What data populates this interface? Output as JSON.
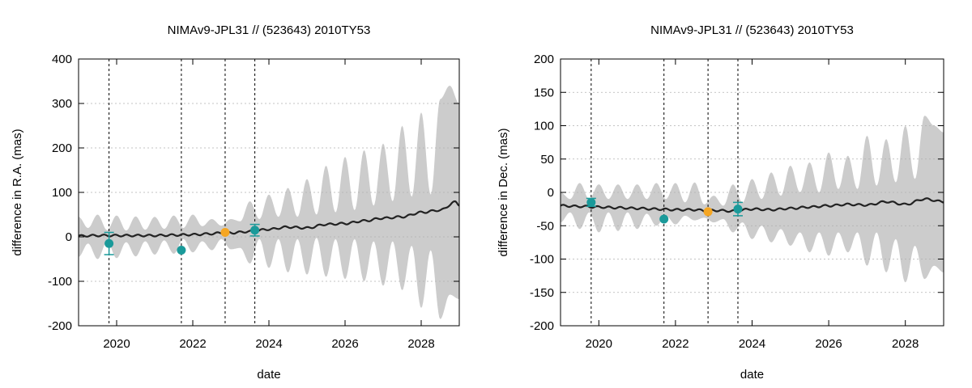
{
  "chart_data": [
    {
      "type": "line",
      "title": "NIMAv9-JPL31 // (523643) 2010TY53",
      "xlabel": "date",
      "ylabel": "difference in R.A. (mas)",
      "xlim": [
        2019.0,
        2029.0
      ],
      "ylim": [
        -200,
        400
      ],
      "x_ticks": [
        2020,
        2022,
        2024,
        2026,
        2028
      ],
      "x_tick_labels": [
        "2020",
        "2022",
        "2024",
        "2026",
        "2028"
      ],
      "y_ticks": [
        -200,
        -100,
        0,
        100,
        200,
        300,
        400
      ],
      "y_tick_labels": [
        "-200",
        "-100",
        "0",
        "100",
        "200",
        "300",
        "400"
      ],
      "grid": true,
      "vertical_markers": [
        2019.8,
        2021.7,
        2022.85,
        2023.63
      ],
      "series": [
        {
          "name": "difference",
          "kind": "curve",
          "color": "#222222",
          "x": [
            2019.0,
            2019.5,
            2020.0,
            2020.5,
            2021.0,
            2021.5,
            2022.0,
            2022.5,
            2022.85,
            2023.0,
            2023.5,
            2024.0,
            2024.5,
            2025.0,
            2025.5,
            2026.0,
            2026.5,
            2027.0,
            2027.5,
            2028.0,
            2028.5,
            2028.9,
            2029.0
          ],
          "y": [
            2,
            3,
            3,
            3,
            3,
            4,
            5,
            7,
            10,
            9,
            12,
            17,
            22,
            20,
            28,
            30,
            36,
            42,
            45,
            55,
            60,
            78,
            72
          ]
        },
        {
          "name": "uncertainty envelope",
          "kind": "band",
          "color": "#cccccc",
          "x": [
            2019.0,
            2019.25,
            2019.5,
            2019.75,
            2020.0,
            2020.25,
            2020.5,
            2020.75,
            2021.0,
            2021.25,
            2021.5,
            2021.75,
            2022.0,
            2022.25,
            2022.5,
            2022.75,
            2023.0,
            2023.25,
            2023.5,
            2023.75,
            2024.0,
            2024.25,
            2024.5,
            2024.75,
            2025.0,
            2025.25,
            2025.5,
            2025.75,
            2026.0,
            2026.25,
            2026.5,
            2026.75,
            2027.0,
            2027.25,
            2027.5,
            2027.75,
            2028.0,
            2028.25,
            2028.5,
            2028.75,
            2029.0
          ],
          "upper": [
            45,
            20,
            50,
            15,
            48,
            14,
            46,
            16,
            45,
            18,
            48,
            20,
            50,
            24,
            40,
            25,
            40,
            35,
            80,
            40,
            95,
            45,
            110,
            45,
            130,
            50,
            160,
            55,
            180,
            60,
            195,
            70,
            210,
            80,
            250,
            90,
            280,
            95,
            310,
            340,
            300
          ],
          "lower": [
            -45,
            -15,
            -50,
            -10,
            -48,
            -12,
            -44,
            -10,
            -40,
            -8,
            -38,
            -5,
            -35,
            -10,
            -30,
            -5,
            -28,
            -25,
            -60,
            -5,
            -70,
            -5,
            -80,
            -5,
            -85,
            -2,
            -90,
            -5,
            -95,
            -5,
            -100,
            -10,
            -110,
            -10,
            -120,
            -20,
            -160,
            -30,
            -185,
            -130,
            -140
          ]
        },
        {
          "name": "observations",
          "kind": "points",
          "color": "#1a9a9a",
          "x": [
            2019.8,
            2021.7,
            2023.63
          ],
          "y": [
            -15,
            -30,
            15
          ],
          "yerr": [
            25,
            0,
            13
          ]
        },
        {
          "name": "reference epoch",
          "kind": "points",
          "color": "#f5a623",
          "x": [
            2022.85
          ],
          "y": [
            10
          ],
          "yerr": [
            0
          ]
        }
      ]
    },
    {
      "type": "line",
      "title": "NIMAv9-JPL31 // (523643) 2010TY53",
      "xlabel": "date",
      "ylabel": "difference in Dec. (mas)",
      "xlim": [
        2019.0,
        2029.0
      ],
      "ylim": [
        -200,
        200
      ],
      "x_ticks": [
        2020,
        2022,
        2024,
        2026,
        2028
      ],
      "x_tick_labels": [
        "2020",
        "2022",
        "2024",
        "2026",
        "2028"
      ],
      "y_ticks": [
        -200,
        -150,
        -100,
        -50,
        0,
        50,
        100,
        150,
        200
      ],
      "y_tick_labels": [
        "-200",
        "-150",
        "-100",
        "-50",
        "0",
        "50",
        "100",
        "150",
        "200"
      ],
      "grid": true,
      "vertical_markers": [
        2019.8,
        2021.7,
        2022.85,
        2023.63
      ],
      "series": [
        {
          "name": "difference",
          "kind": "curve",
          "color": "#222222",
          "x": [
            2019.0,
            2019.5,
            2020.0,
            2020.5,
            2021.0,
            2021.5,
            2022.0,
            2022.5,
            2022.85,
            2023.0,
            2023.5,
            2024.0,
            2024.5,
            2025.0,
            2025.5,
            2026.0,
            2026.5,
            2027.0,
            2027.5,
            2028.0,
            2028.5,
            2029.0
          ],
          "y": [
            -20,
            -21,
            -22,
            -23,
            -24,
            -25,
            -26,
            -26,
            -28,
            -27,
            -28,
            -25,
            -26,
            -24,
            -22,
            -20,
            -18,
            -19,
            -14,
            -18,
            -10,
            -14
          ]
        },
        {
          "name": "uncertainty envelope",
          "kind": "band",
          "color": "#cccccc",
          "x": [
            2019.0,
            2019.25,
            2019.5,
            2019.75,
            2020.0,
            2020.25,
            2020.5,
            2020.75,
            2021.0,
            2021.25,
            2021.5,
            2021.75,
            2022.0,
            2022.25,
            2022.5,
            2022.75,
            2023.0,
            2023.25,
            2023.5,
            2023.75,
            2024.0,
            2024.25,
            2024.5,
            2024.75,
            2025.0,
            2025.25,
            2025.5,
            2025.75,
            2026.0,
            2026.25,
            2026.5,
            2026.75,
            2027.0,
            2027.25,
            2027.5,
            2027.75,
            2028.0,
            2028.25,
            2028.5,
            2028.75,
            2029.0
          ],
          "upper": [
            0,
            -10,
            14,
            -10,
            12,
            -10,
            12,
            -10,
            12,
            -10,
            14,
            -10,
            14,
            -15,
            15,
            -18,
            -5,
            -20,
            12,
            -15,
            20,
            -10,
            30,
            -5,
            40,
            0,
            45,
            0,
            60,
            5,
            55,
            5,
            85,
            10,
            80,
            15,
            100,
            20,
            115,
            100,
            90
          ],
          "lower": [
            -45,
            -30,
            -55,
            -30,
            -60,
            -30,
            -58,
            -30,
            -55,
            -32,
            -50,
            -35,
            -48,
            -35,
            -42,
            -38,
            -45,
            -40,
            -60,
            -45,
            -70,
            -50,
            -75,
            -55,
            -80,
            -60,
            -90,
            -60,
            -95,
            -60,
            -90,
            -60,
            -110,
            -60,
            -120,
            -70,
            -135,
            -80,
            -130,
            -110,
            -120
          ]
        },
        {
          "name": "observations",
          "kind": "points",
          "color": "#1a9a9a",
          "x": [
            2019.8,
            2021.7,
            2023.63
          ],
          "y": [
            -15,
            -40,
            -25
          ],
          "yerr": [
            6,
            0,
            10
          ]
        },
        {
          "name": "reference epoch",
          "kind": "points",
          "color": "#f5a623",
          "x": [
            2022.85
          ],
          "y": [
            -29
          ],
          "yerr": [
            0
          ]
        }
      ]
    }
  ]
}
